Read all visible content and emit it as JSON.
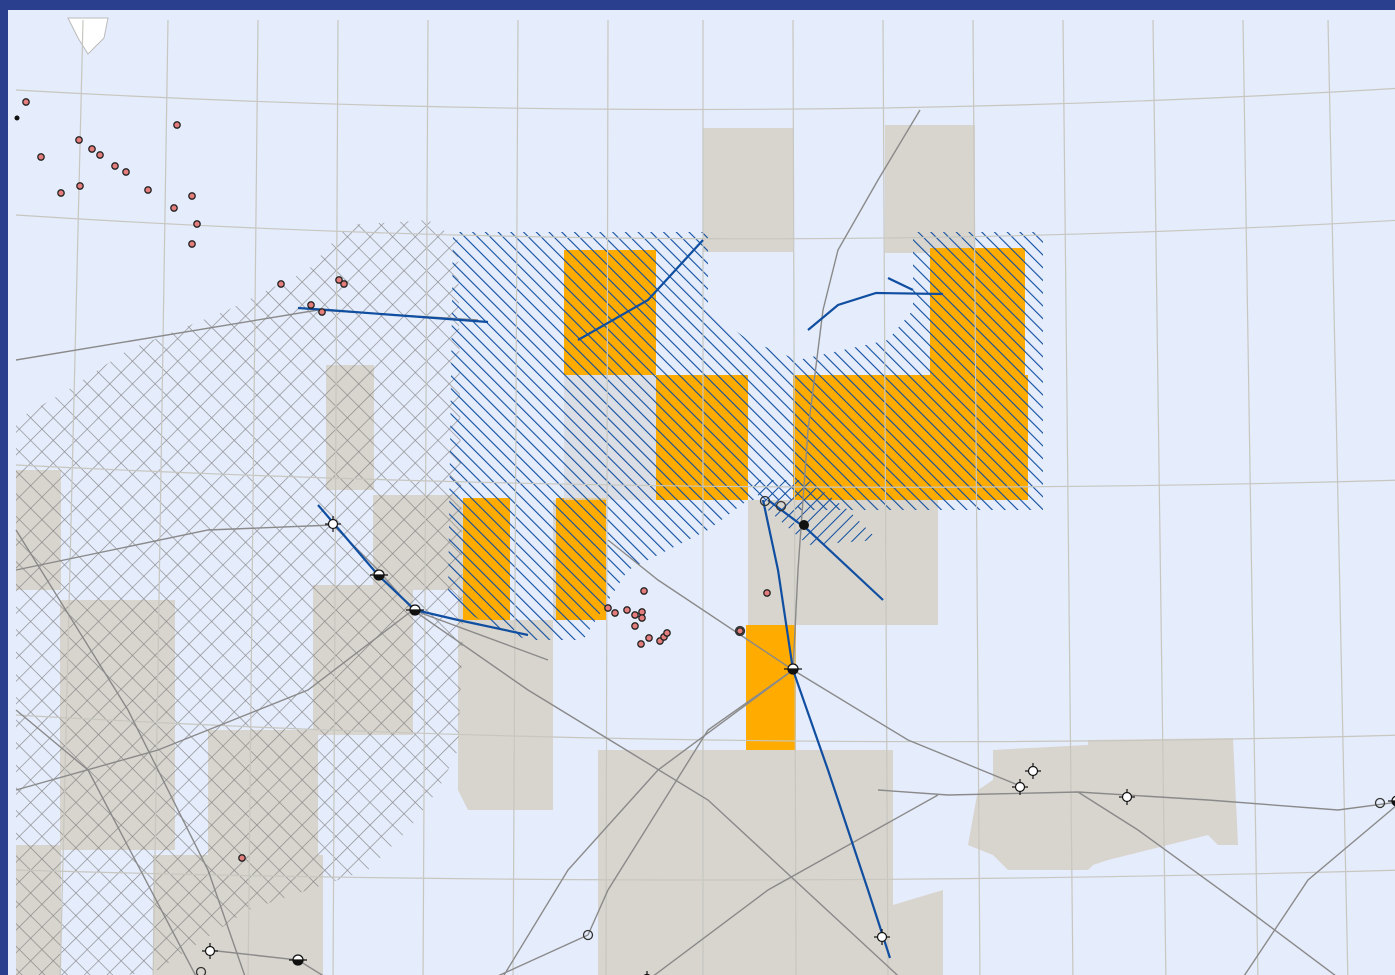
{
  "map": {
    "colors": {
      "frame": "#2b3f8f",
      "background": "#e5ecfb",
      "grid_line": "#c7c7c0",
      "block_gray": "#d8d4ce",
      "block_orange": "#ffab00",
      "hatch_blue": "#0f4ea0",
      "hatch_gray": "#7d7d7d",
      "line_gray": "#8a8a8a",
      "pipeline_blue": "#0f4ea0",
      "well_red": "#e57d7d"
    },
    "icons": [
      "well-dot-icon",
      "platform-icon",
      "sun-symbol-icon",
      "open-circle-icon",
      "black-dot-icon"
    ],
    "labels": []
  }
}
